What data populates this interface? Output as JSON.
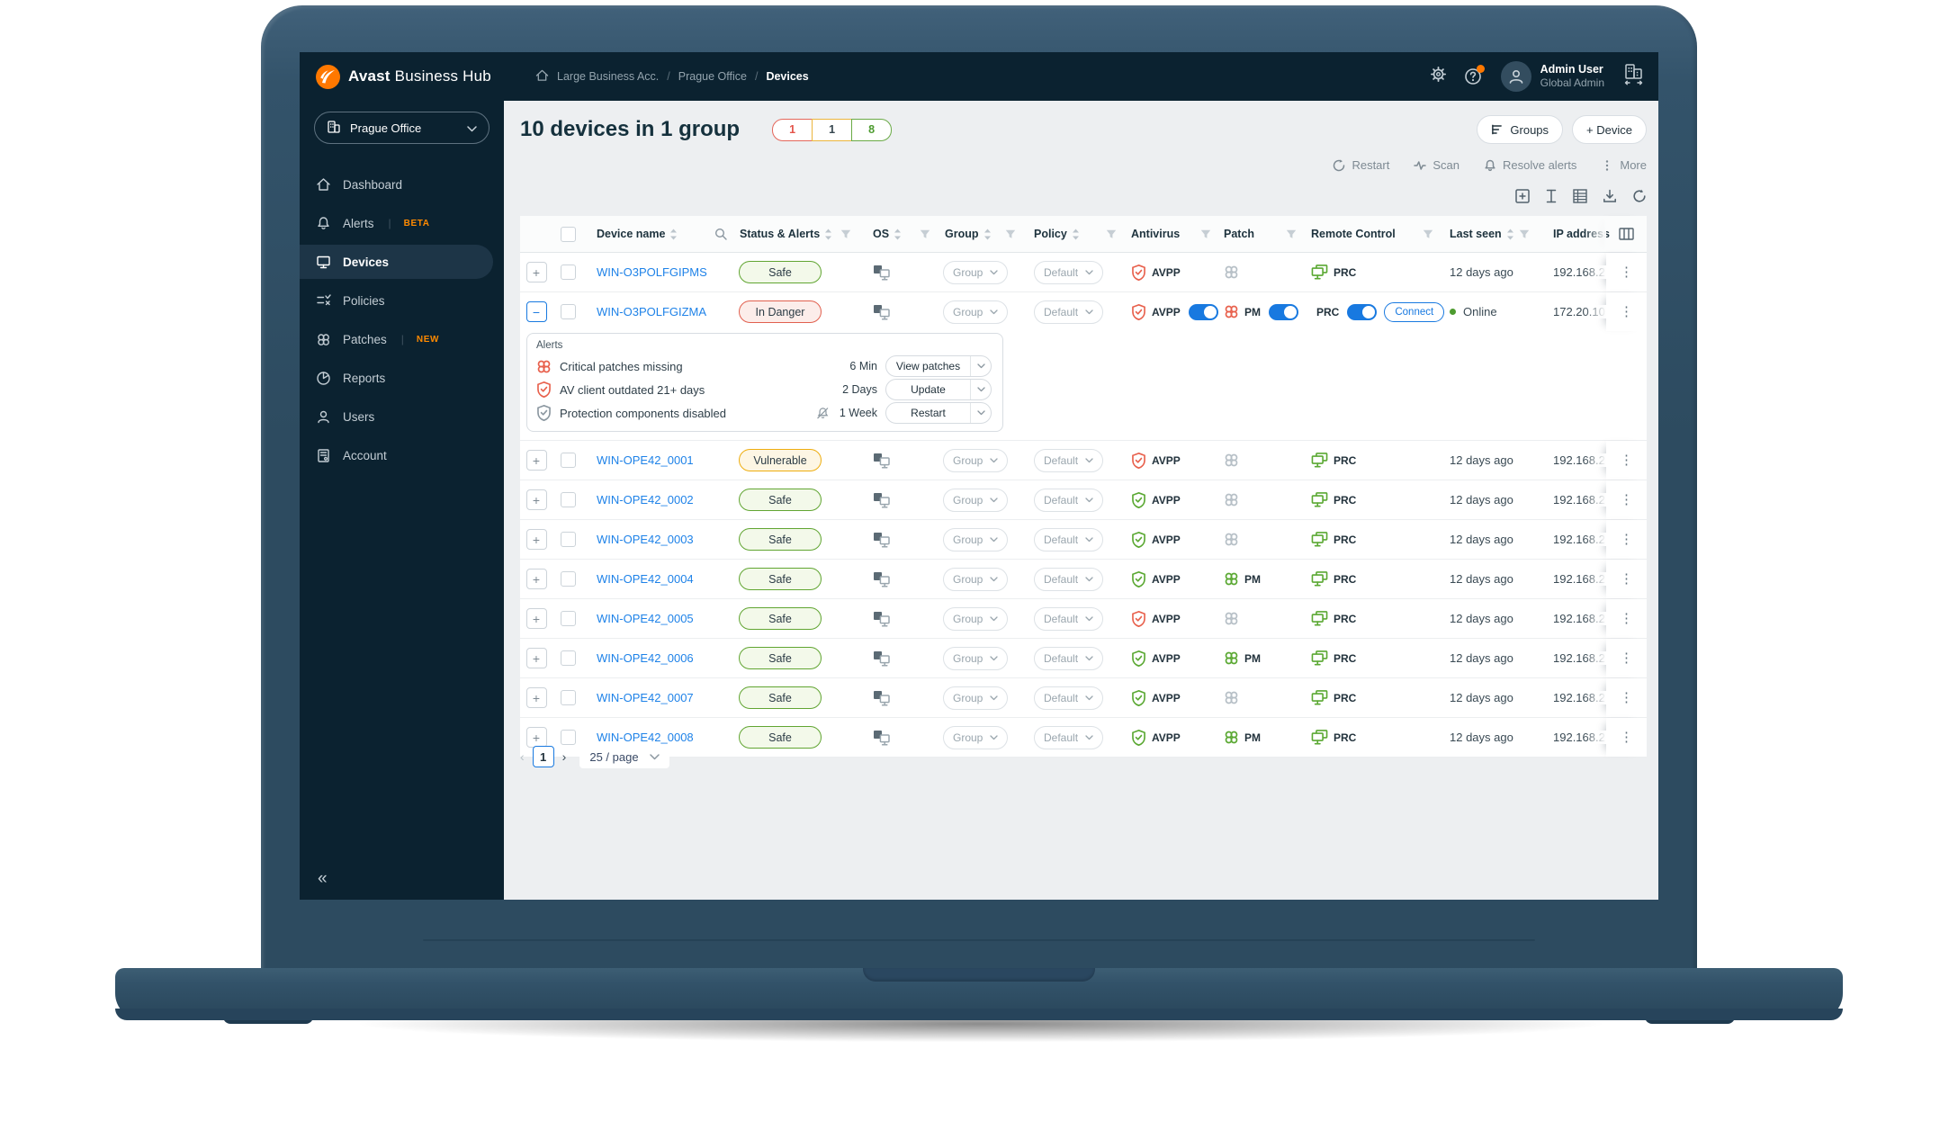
{
  "colors": {
    "accent_orange": "#FF7800",
    "blue": "#1879E0",
    "green": "#5AA832",
    "red": "#E8604C",
    "yellow": "#EEAD0F",
    "dark_navy": "#0B2230",
    "link_blue": "#1E82E8"
  },
  "glyphs": {
    "plus": "+",
    "minus": "−",
    "kebab": "⋮",
    "prev": "‹",
    "next": "›",
    "collapse": "«"
  },
  "topbar": {
    "brand_bold": "Avast",
    "brand_light": "Business Hub",
    "breadcrumb": [
      "Large Business Acc.",
      "Prague Office",
      "Devices"
    ],
    "user_name": "Admin User",
    "user_role": "Global Admin"
  },
  "sidebar": {
    "org_selector": "Prague Office",
    "items": [
      {
        "label": "Dashboard",
        "icon": "home-icon"
      },
      {
        "label": "Alerts",
        "badge": "BETA",
        "icon": "bell-icon"
      },
      {
        "label": "Devices",
        "icon": "monitor-icon",
        "active": true
      },
      {
        "label": "Policies",
        "icon": "policies-icon"
      },
      {
        "label": "Patches",
        "badge": "NEW",
        "icon": "patch-icon"
      },
      {
        "label": "Reports",
        "icon": "reports-icon"
      },
      {
        "label": "Users",
        "icon": "user-icon"
      },
      {
        "label": "Account",
        "icon": "account-icon"
      }
    ]
  },
  "header": {
    "title": "10 devices in 1 group",
    "counters": [
      {
        "value": "1",
        "kind": "red"
      },
      {
        "value": "1",
        "kind": "yellow"
      },
      {
        "value": "8",
        "kind": "green"
      }
    ],
    "groups_label": "Groups",
    "add_device_label": "+ Device",
    "bulk_actions": [
      {
        "label": "Restart",
        "icon": "restart-icon"
      },
      {
        "label": "Scan",
        "icon": "scan-icon"
      },
      {
        "label": "Resolve alerts",
        "icon": "bell-icon"
      },
      {
        "label": "More",
        "icon": "kebab-icon"
      }
    ]
  },
  "table": {
    "headers": [
      {
        "label": "Device name",
        "sort": true,
        "search": true
      },
      {
        "label": "Status & Alerts",
        "sort": true,
        "filter": true
      },
      {
        "label": "OS",
        "sort": true,
        "filter": true
      },
      {
        "label": "Group",
        "sort": true,
        "filter": true
      },
      {
        "label": "Policy",
        "sort": true,
        "filter": true
      },
      {
        "label": "Antivirus",
        "filter": true
      },
      {
        "label": "Patch",
        "filter": true
      },
      {
        "label": "Remote Control",
        "filter": true
      },
      {
        "label": "Last seen",
        "sort": true,
        "filter": true
      },
      {
        "label": "IP address",
        "clip": true
      }
    ],
    "group_value": "Group",
    "policy_value": "Default",
    "av_label": "AVPP",
    "patch_label": "PM",
    "rc_label": "PRC",
    "connect_label": "Connect",
    "rows": [
      {
        "name": "WIN-O3POLFGIPMS",
        "status": "Safe",
        "status_kind": "safe",
        "av": "red",
        "av_toggle": false,
        "patch": "none",
        "patch_toggle": false,
        "rc_toggle": false,
        "connect": false,
        "online": false,
        "last_seen": "12 days ago",
        "ip": "192.168.2",
        "expanded": false
      },
      {
        "name": "WIN-O3POLFGIZMA",
        "status": "In Danger",
        "status_kind": "danger",
        "av": "red",
        "av_toggle": true,
        "patch": "red",
        "patch_toggle": true,
        "rc_toggle": true,
        "connect": true,
        "online": true,
        "last_seen": "Online",
        "ip": "172.20.10",
        "expanded": true
      },
      {
        "name": "WIN-OPE42_0001",
        "status": "Vulnerable",
        "status_kind": "warn",
        "av": "red",
        "av_toggle": false,
        "patch": "none",
        "patch_toggle": false,
        "rc_toggle": false,
        "connect": false,
        "online": false,
        "last_seen": "12 days ago",
        "ip": "192.168.2",
        "expanded": false
      },
      {
        "name": "WIN-OPE42_0002",
        "status": "Safe",
        "status_kind": "safe",
        "av": "green",
        "av_toggle": false,
        "patch": "none",
        "patch_toggle": false,
        "rc_toggle": false,
        "connect": false,
        "online": false,
        "last_seen": "12 days ago",
        "ip": "192.168.2",
        "expanded": false
      },
      {
        "name": "WIN-OPE42_0003",
        "status": "Safe",
        "status_kind": "safe",
        "av": "green",
        "av_toggle": false,
        "patch": "none",
        "patch_toggle": false,
        "rc_toggle": false,
        "connect": false,
        "online": false,
        "last_seen": "12 days ago",
        "ip": "192.168.2",
        "expanded": false
      },
      {
        "name": "WIN-OPE42_0004",
        "status": "Safe",
        "status_kind": "safe",
        "av": "green",
        "av_toggle": false,
        "patch": "green",
        "patch_toggle": false,
        "rc_toggle": false,
        "connect": false,
        "online": false,
        "last_seen": "12 days ago",
        "ip": "192.168.2",
        "expanded": false
      },
      {
        "name": "WIN-OPE42_0005",
        "status": "Safe",
        "status_kind": "safe",
        "av": "red",
        "av_toggle": false,
        "patch": "none",
        "patch_toggle": false,
        "rc_toggle": false,
        "connect": false,
        "online": false,
        "last_seen": "12 days ago",
        "ip": "192.168.2",
        "expanded": false
      },
      {
        "name": "WIN-OPE42_0006",
        "status": "Safe",
        "status_kind": "safe",
        "av": "green",
        "av_toggle": false,
        "patch": "green",
        "patch_toggle": false,
        "rc_toggle": false,
        "connect": false,
        "online": false,
        "last_seen": "12 days ago",
        "ip": "192.168.2",
        "expanded": false
      },
      {
        "name": "WIN-OPE42_0007",
        "status": "Safe",
        "status_kind": "safe",
        "av": "green",
        "av_toggle": false,
        "patch": "none",
        "patch_toggle": false,
        "rc_toggle": false,
        "connect": false,
        "online": false,
        "last_seen": "12 days ago",
        "ip": "192.168.2",
        "expanded": false
      },
      {
        "name": "WIN-OPE42_0008",
        "status": "Safe",
        "status_kind": "safe",
        "av": "green",
        "av_toggle": false,
        "patch": "green",
        "patch_toggle": false,
        "rc_toggle": false,
        "connect": false,
        "online": false,
        "last_seen": "12 days ago",
        "ip": "192.168.2",
        "expanded": false
      }
    ]
  },
  "alerts_panel": {
    "title": "Alerts",
    "items": [
      {
        "icon": "patch-red-icon",
        "text": "Critical patches missing",
        "age": "6 Min",
        "action": "View patches",
        "muted_bell": false
      },
      {
        "icon": "shield-red-icon",
        "text": "AV client outdated 21+ days",
        "age": "2 Days",
        "action": "Update",
        "muted_bell": false
      },
      {
        "icon": "shield-gray-icon",
        "text": "Protection components disabled",
        "age": "1 Week",
        "action": "Restart",
        "muted_bell": true
      }
    ]
  },
  "pagination": {
    "page": "1",
    "per_page": "25 / page"
  }
}
